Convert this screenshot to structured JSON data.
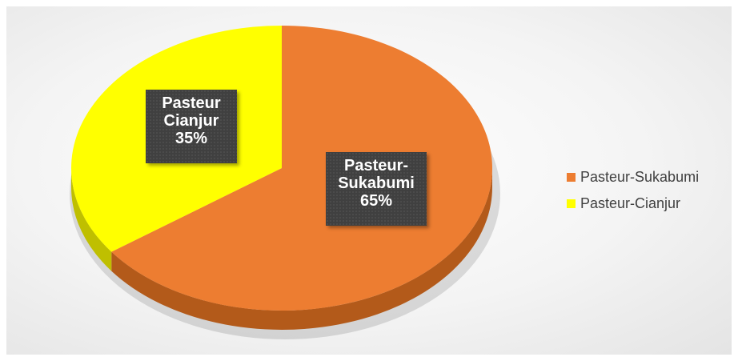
{
  "chart_data": {
    "type": "pie",
    "title": "",
    "three_d": true,
    "legend_position": "right",
    "slices": [
      {
        "name": "Pasteur-Sukabumi",
        "label_lines": [
          "Pasteur-",
          "Sukabumi",
          "65%"
        ],
        "value": 65,
        "color": "#ED7D31",
        "side_color": "#B35A1A"
      },
      {
        "name": "Pasteur-Cianjur",
        "label_lines": [
          "Pasteur",
          "Cianjur",
          "35%"
        ],
        "value": 35,
        "color": "#FFFF00",
        "side_color": "#BFBF00"
      }
    ]
  }
}
